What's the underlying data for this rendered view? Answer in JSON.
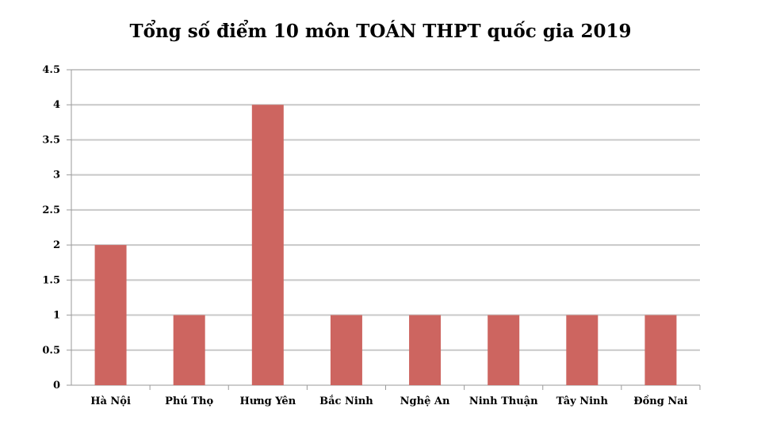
{
  "chart_data": {
    "type": "bar",
    "title": "Tổng số điểm 10 môn TOÁN THPT quốc gia 2019",
    "xlabel": "",
    "ylabel": "",
    "categories": [
      "Hà Nội",
      "Phú Thọ",
      "Hưng Yên",
      "Bắc Ninh",
      "Nghệ An",
      "Ninh Thuận",
      "Tây Ninh",
      "Đồng Nai"
    ],
    "values": [
      2,
      1,
      4,
      1,
      1,
      1,
      1,
      1
    ],
    "ylim": [
      0,
      4.5
    ],
    "yticks": [
      "0",
      "0.5",
      "1",
      "1.5",
      "2",
      "2.5",
      "3",
      "3.5",
      "4",
      "4.5"
    ],
    "grid": true,
    "legend": "none",
    "bar_color": "#cd6560",
    "grid_color": "#c8c8c8"
  }
}
